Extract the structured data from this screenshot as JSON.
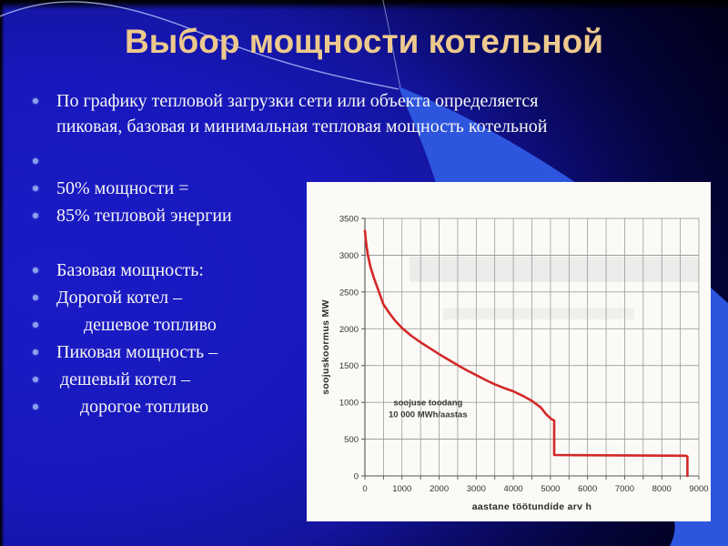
{
  "slide": {
    "title": "Выбор мощности котельной",
    "bullets": [
      {
        "text": "По графику тепловой загрузки сети или объекта определяется\nпиковая, базовая и минимальная тепловая мощность котельной",
        "bullet": true,
        "indent": 0
      },
      {
        "text": "",
        "bullet": true,
        "indent": 0
      },
      {
        "text": "50% мощности =",
        "bullet": true,
        "indent": 0
      },
      {
        "text": "85% тепловой энергии",
        "bullet": true,
        "indent": 0
      },
      {
        "text": "",
        "bullet": false,
        "indent": 0
      },
      {
        "text": "Базовая мощность:",
        "bullet": true,
        "indent": 0
      },
      {
        "text": "Дорогой котел –",
        "bullet": true,
        "indent": 0
      },
      {
        "text": "дешевое топливо",
        "bullet": true,
        "indent": 1.5
      },
      {
        "text": "Пиковая мощность –",
        "bullet": true,
        "indent": 0
      },
      {
        "text": "дешевый котел –",
        "bullet": true,
        "indent": 0.2
      },
      {
        "text": "дорогое топливо",
        "bullet": true,
        "indent": 1.3
      }
    ]
  },
  "colors": {
    "title_text": "#edc98d",
    "body_text": "#f5f5f2",
    "bullet_dot": "#8aa2ec",
    "swoosh_blue": "#2d55de",
    "arc_light": "#bcd0ff",
    "chart_paper": "#fbfaf6",
    "curve_red": "#d32828",
    "grid_gray": "#8f8f8f",
    "chart_text": "#2a2a2a"
  },
  "chart_data": {
    "type": "line",
    "title": "",
    "xlabel": "aastane töötundide arv h",
    "ylabel": "soojuskoormus MW",
    "xlim": [
      0,
      9000
    ],
    "ylim": [
      0,
      3500
    ],
    "xticks": [
      0,
      1000,
      2000,
      3000,
      4000,
      5000,
      6000,
      7000,
      8000,
      9000
    ],
    "yticks": [
      0,
      500,
      1000,
      1500,
      2000,
      2500,
      3000,
      3500
    ],
    "x_minor_step": 500,
    "grid": true,
    "legend": false,
    "annotation": {
      "text_lines": [
        "soojuse toodang",
        "10 000 MWh/aastas"
      ],
      "x": 1700,
      "y": 960
    },
    "series": [
      {
        "name": "heat load duration curve",
        "color": "#d32828",
        "points": [
          [
            0,
            3330
          ],
          [
            40,
            3140
          ],
          [
            80,
            3000
          ],
          [
            150,
            2840
          ],
          [
            250,
            2680
          ],
          [
            350,
            2540
          ],
          [
            500,
            2330
          ],
          [
            650,
            2220
          ],
          [
            800,
            2120
          ],
          [
            1000,
            2010
          ],
          [
            1250,
            1905
          ],
          [
            1500,
            1815
          ],
          [
            1750,
            1735
          ],
          [
            2000,
            1655
          ],
          [
            2250,
            1580
          ],
          [
            2500,
            1505
          ],
          [
            2750,
            1435
          ],
          [
            3000,
            1370
          ],
          [
            3250,
            1305
          ],
          [
            3500,
            1245
          ],
          [
            3750,
            1195
          ],
          [
            4000,
            1150
          ],
          [
            4250,
            1090
          ],
          [
            4500,
            1020
          ],
          [
            4740,
            930
          ],
          [
            4900,
            830
          ],
          [
            5030,
            770
          ],
          [
            5100,
            755
          ],
          [
            5100,
            285
          ],
          [
            8650,
            275
          ],
          [
            8690,
            265
          ],
          [
            8690,
            0
          ]
        ]
      }
    ]
  }
}
